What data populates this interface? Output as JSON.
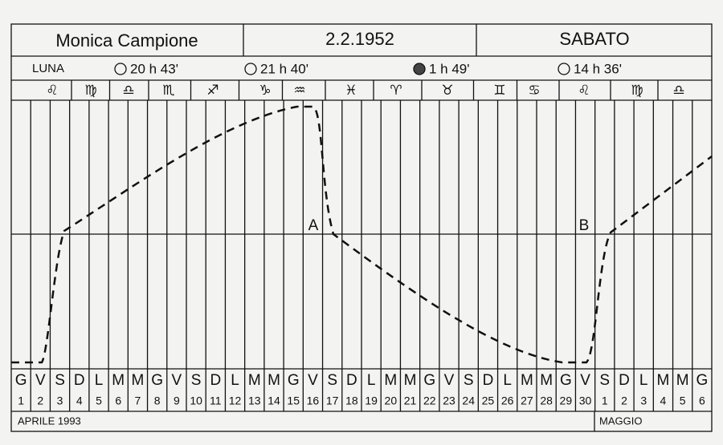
{
  "header": {
    "name": "Monica Campione",
    "date": "2.2.1952",
    "weekday": "SABATO"
  },
  "moon": {
    "label": "LUNA",
    "phases": [
      "20 h 43'",
      "21 h 40'",
      "1 h 49'",
      "14 h 36'"
    ]
  },
  "zodiac": [
    "♌",
    "♍",
    "♎",
    "♏",
    "♐",
    "♑",
    "♒",
    "♓",
    "♈",
    "♉",
    "♊",
    "♋",
    "♌",
    "♍",
    "♎"
  ],
  "markers": [
    "A",
    "B"
  ],
  "days": {
    "letters": [
      "G",
      "V",
      "S",
      "D",
      "L",
      "M",
      "M",
      "G",
      "V",
      "S",
      "D",
      "L",
      "M",
      "M",
      "G",
      "V",
      "S",
      "D",
      "L",
      "M",
      "M",
      "G",
      "V",
      "S",
      "D",
      "L",
      "M",
      "M",
      "G",
      "V",
      "S",
      "D",
      "L",
      "M",
      "M",
      "G"
    ],
    "numbers": [
      1,
      2,
      3,
      4,
      5,
      6,
      7,
      8,
      9,
      10,
      11,
      12,
      13,
      14,
      15,
      16,
      17,
      18,
      19,
      20,
      21,
      22,
      23,
      24,
      25,
      26,
      27,
      28,
      29,
      30,
      1,
      2,
      3,
      4,
      5,
      6
    ]
  },
  "months": [
    "APRILE 1993",
    "MAGGIO"
  ]
}
